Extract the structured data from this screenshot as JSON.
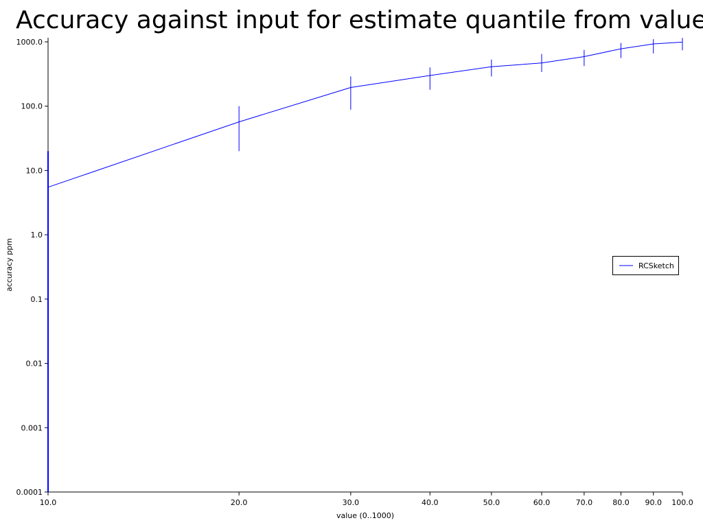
{
  "chart_data": {
    "type": "line",
    "title": "Accuracy against input for estimate quantile from value",
    "xlabel": "value (0..1000)",
    "ylabel": "accuracy ppm",
    "xscale": "log",
    "yscale": "log",
    "xlim": [
      10,
      100
    ],
    "ylim": [
      0.0001,
      1000
    ],
    "x_ticks": [
      10,
      20,
      30,
      40,
      50,
      60,
      70,
      80,
      90,
      100
    ],
    "x_tick_labels": [
      "10.0",
      "20.0",
      "30.0",
      "40.0",
      "50.0",
      "60.0",
      "70.0",
      "80.0",
      "90.0",
      "100.0"
    ],
    "y_ticks": [
      0.0001,
      0.001,
      0.01,
      0.1,
      1,
      10,
      100,
      1000
    ],
    "y_tick_labels": [
      "0.0001",
      "0.001",
      "0.01",
      "0.1",
      "1.0",
      "10.0",
      "100.0",
      "1000.0"
    ],
    "grid": false,
    "legend_position": "right",
    "series": [
      {
        "name": "RCSketch",
        "color": "#0000ff",
        "x": [
          10,
          20,
          30,
          40,
          50,
          60,
          70,
          80,
          90,
          100
        ],
        "y": [
          5.5,
          57,
          195,
          300,
          410,
          470,
          590,
          780,
          930,
          990
        ],
        "y_err_low": [
          0.0001,
          20,
          88,
          180,
          290,
          340,
          420,
          560,
          660,
          740
        ],
        "y_err_high": [
          20,
          100,
          290,
          400,
          530,
          650,
          750,
          960,
          1100,
          1150
        ]
      }
    ]
  }
}
